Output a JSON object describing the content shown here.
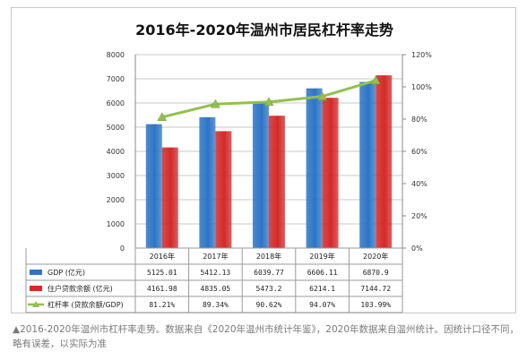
{
  "chart_data": {
    "type": "bar",
    "title": "2016年-2020年温州市居民杠杆率走势",
    "categories": [
      "2016年",
      "2017年",
      "2018年",
      "2019年",
      "2020年"
    ],
    "ylim": [
      0,
      8000
    ],
    "yticks": [
      "0",
      "1000",
      "2000",
      "3000",
      "4000",
      "5000",
      "6000",
      "7000",
      "8000"
    ],
    "y2lim": [
      0,
      120
    ],
    "y2ticks": [
      "0%",
      "20%",
      "40%",
      "60%",
      "80%",
      "100%",
      "120%"
    ],
    "series": [
      {
        "name": "GDP (亿元)",
        "kind": "bar",
        "color": "#2e75c6",
        "values": [
          5125.01,
          5412.13,
          6039.77,
          6606.11,
          6870.9
        ],
        "labels": [
          "5125.01",
          "5412.13",
          "6039.77",
          "6606.11",
          "6870.9"
        ]
      },
      {
        "name": "住户贷款余额 (亿元)",
        "kind": "bar",
        "color": "#d42a2a",
        "values": [
          4161.98,
          4835.05,
          5473.2,
          6214.1,
          7144.72
        ],
        "labels": [
          "4161.98",
          "4835.05",
          "5473.2",
          "6214.1",
          "7144.72"
        ]
      },
      {
        "name": "杠杆率 (贷款余额/GDP)",
        "kind": "line",
        "axis": "right",
        "color": "#92c050",
        "values": [
          81.21,
          89.34,
          90.62,
          94.07,
          103.99
        ],
        "labels": [
          "81.21%",
          "89.34%",
          "90.62%",
          "94.07%",
          "103.99%"
        ]
      }
    ],
    "legend": "data-table-left",
    "grid": true
  },
  "caption": "▲2016-2020年温州市杠杆率走势。数据来自《2020年温州市统计年鉴》，2020年数据来自温州统计。因统计口径不同，略有误差，以实际为准"
}
